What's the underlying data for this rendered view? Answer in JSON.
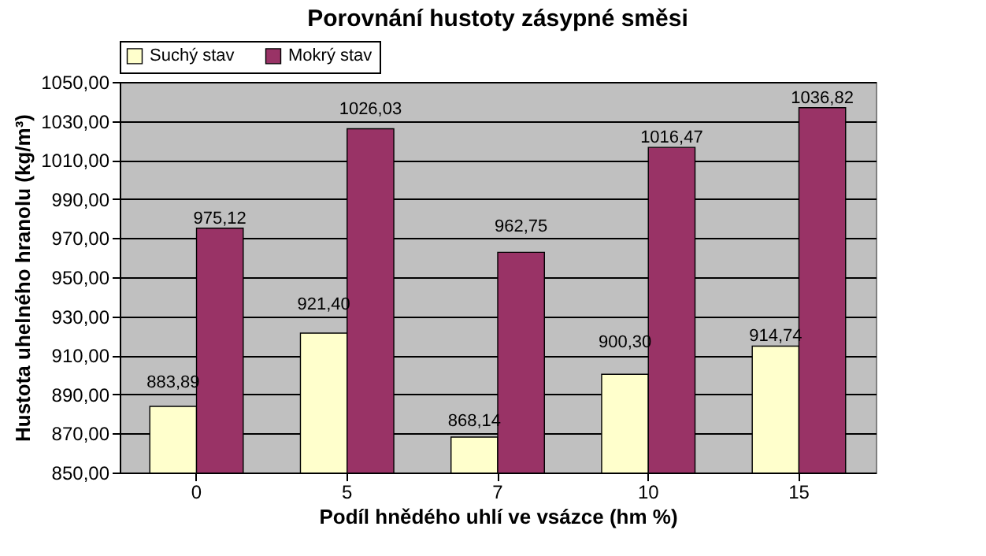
{
  "chart_data": {
    "type": "bar",
    "title": "Porovnání hustoty zásypné směsi",
    "xlabel": "Podíl hnědého uhlí ve vsázce (hm %)",
    "ylabel": "Hustota uhelného hranolu (kg/m³)",
    "categories": [
      "0",
      "5",
      "7",
      "10",
      "15"
    ],
    "series": [
      {
        "name": "Suchý stav",
        "color": "#ffffcc",
        "values": [
          883.89,
          921.4,
          868.14,
          900.3,
          914.74
        ],
        "value_labels": [
          "883,89",
          "921,40",
          "868,14",
          "900,30",
          "914,74"
        ]
      },
      {
        "name": "Mokrý stav",
        "color": "#993366",
        "values": [
          975.12,
          1026.03,
          962.75,
          1016.47,
          1036.82
        ],
        "value_labels": [
          "975,12",
          "1026,03",
          "962,75",
          "1016,47",
          "1036,82"
        ]
      }
    ],
    "ylim": [
      850,
      1050
    ],
    "yticks": [
      {
        "value": 850,
        "label": "850,00"
      },
      {
        "value": 870,
        "label": "870,00"
      },
      {
        "value": 890,
        "label": "890,00"
      },
      {
        "value": 910,
        "label": "910,00"
      },
      {
        "value": 930,
        "label": "930,00"
      },
      {
        "value": 950,
        "label": "950,00"
      },
      {
        "value": 970,
        "label": "970,00"
      },
      {
        "value": 990,
        "label": "990,00"
      },
      {
        "value": 1010,
        "label": "1010,00"
      },
      {
        "value": 1030,
        "label": "1030,00"
      },
      {
        "value": 1050,
        "label": "1050,00"
      }
    ],
    "grid": "y",
    "legend": "top"
  }
}
